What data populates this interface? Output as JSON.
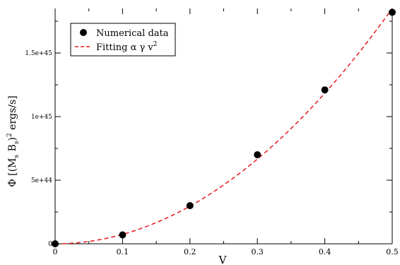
{
  "chart_data": {
    "type": "scatter",
    "title": "",
    "xlabel": "V",
    "ylabel": "Φ  [(M_s B_s)² ergs/s]",
    "ylabel_parts": {
      "prefix": "Φ  [(M",
      "sub1": "s",
      "mid": " B",
      "sub2": "s",
      "close": ")",
      "sup": "2",
      "suffix": " ergs/s]"
    },
    "xlim": [
      0,
      0.5
    ],
    "ylim": [
      0,
      1.85e+45
    ],
    "x_ticks": [
      0,
      0.1,
      0.2,
      0.3,
      0.4,
      0.5
    ],
    "x_tick_labels": [
      "0",
      "0.1",
      "0.2",
      "0.3",
      "0.4",
      "0.5"
    ],
    "y_ticks": [
      0,
      5e+44,
      1e+45,
      1.5e+45
    ],
    "y_tick_labels": [
      "0",
      "5e+44",
      "1e+45",
      "1.5e+45"
    ],
    "grid": false,
    "legend_position": "top-left",
    "series": [
      {
        "name": "Numerical data",
        "kind": "points",
        "color": "#000000",
        "x": [
          0.0,
          0.1,
          0.2,
          0.3,
          0.4,
          0.5
        ],
        "y": [
          0.0,
          7e+43,
          3e+44,
          7e+44,
          1.21e+45,
          1.82e+45
        ]
      },
      {
        "name": "Fitting  α γ v²",
        "name_parts": {
          "main": "Fitting  α γ v",
          "sup": "2"
        },
        "kind": "dashed-line",
        "color": "#e8181c",
        "function": "quadratic",
        "coefficient": 7.4e+45
      }
    ]
  }
}
